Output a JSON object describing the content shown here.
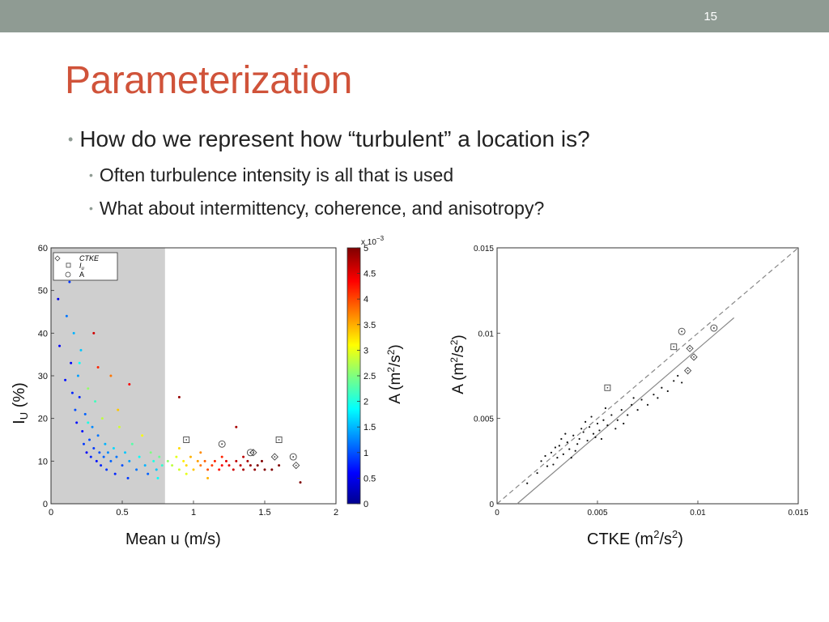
{
  "slide": {
    "number": "15",
    "title": "Parameterization",
    "bullets": [
      {
        "text": "How do we represent how “turbulent” a location is?"
      },
      {
        "text": "Often turbulence intensity is all that is used"
      },
      {
        "text": "What about intermittency, coherence, and anisotropy?"
      }
    ]
  },
  "chart_data": [
    {
      "type": "scatter",
      "xlabel": "Mean u (m/s)",
      "ylabel": "I",
      "ylabel_sub": "U",
      "ylabel_suffix": " (%)",
      "xlim": [
        0,
        2
      ],
      "ylim": [
        0,
        60
      ],
      "xticks": [
        "0",
        "0.5",
        "1",
        "1.5",
        "2"
      ],
      "yticks": [
        "0",
        "10",
        "20",
        "30",
        "40",
        "50",
        "60"
      ],
      "shaded_x_range": [
        0,
        0.8
      ],
      "legend": [
        "CTKE",
        "I",
        "A"
      ],
      "legend_sub": "u",
      "colorbar": {
        "label": "A (m",
        "label_sup1": "2",
        "label_mid": "/s",
        "label_sup2": "2",
        "label_end": ")",
        "exponent_base": "x 10",
        "exponent_sup": "−3",
        "range": [
          0,
          5
        ],
        "ticks": [
          "0",
          "0.5",
          "1",
          "1.5",
          "2",
          "2.5",
          "3",
          "3.5",
          "4",
          "4.5",
          "5"
        ]
      },
      "points": [
        {
          "x": 0.05,
          "y": 48,
          "c": 0.5
        },
        {
          "x": 0.06,
          "y": 37,
          "c": 0.6
        },
        {
          "x": 0.08,
          "y": 56,
          "c": 0.8
        },
        {
          "x": 0.1,
          "y": 29,
          "c": 0.7
        },
        {
          "x": 0.11,
          "y": 44,
          "c": 1.2
        },
        {
          "x": 0.13,
          "y": 52,
          "c": 0.9
        },
        {
          "x": 0.14,
          "y": 33,
          "c": 0.6
        },
        {
          "x": 0.15,
          "y": 26,
          "c": 0.8
        },
        {
          "x": 0.16,
          "y": 40,
          "c": 1.5
        },
        {
          "x": 0.17,
          "y": 22,
          "c": 1.0
        },
        {
          "x": 0.18,
          "y": 19,
          "c": 0.7
        },
        {
          "x": 0.19,
          "y": 30,
          "c": 1.4
        },
        {
          "x": 0.2,
          "y": 25,
          "c": 0.8
        },
        {
          "x": 0.21,
          "y": 36,
          "c": 1.6
        },
        {
          "x": 0.22,
          "y": 17,
          "c": 0.7
        },
        {
          "x": 0.23,
          "y": 14,
          "c": 0.9
        },
        {
          "x": 0.24,
          "y": 21,
          "c": 1.1
        },
        {
          "x": 0.25,
          "y": 12,
          "c": 0.6
        },
        {
          "x": 0.26,
          "y": 27,
          "c": 2.6
        },
        {
          "x": 0.27,
          "y": 15,
          "c": 1.0
        },
        {
          "x": 0.28,
          "y": 11,
          "c": 0.8
        },
        {
          "x": 0.29,
          "y": 18,
          "c": 1.3
        },
        {
          "x": 0.3,
          "y": 13,
          "c": 0.9
        },
        {
          "x": 0.31,
          "y": 24,
          "c": 2.2
        },
        {
          "x": 0.32,
          "y": 10,
          "c": 0.7
        },
        {
          "x": 0.33,
          "y": 16,
          "c": 1.2
        },
        {
          "x": 0.34,
          "y": 12,
          "c": 1.0
        },
        {
          "x": 0.35,
          "y": 9,
          "c": 0.8
        },
        {
          "x": 0.36,
          "y": 20,
          "c": 2.8
        },
        {
          "x": 0.37,
          "y": 11,
          "c": 1.1
        },
        {
          "x": 0.38,
          "y": 14,
          "c": 1.5
        },
        {
          "x": 0.39,
          "y": 8,
          "c": 0.9
        },
        {
          "x": 0.4,
          "y": 12,
          "c": 1.3
        },
        {
          "x": 0.42,
          "y": 10,
          "c": 1.1
        },
        {
          "x": 0.44,
          "y": 13,
          "c": 1.7
        },
        {
          "x": 0.45,
          "y": 7,
          "c": 0.8
        },
        {
          "x": 0.46,
          "y": 11,
          "c": 1.2
        },
        {
          "x": 0.48,
          "y": 18,
          "c": 2.9
        },
        {
          "x": 0.5,
          "y": 9,
          "c": 1.0
        },
        {
          "x": 0.52,
          "y": 12,
          "c": 1.6
        },
        {
          "x": 0.54,
          "y": 6,
          "c": 0.9
        },
        {
          "x": 0.55,
          "y": 10,
          "c": 1.4
        },
        {
          "x": 0.57,
          "y": 14,
          "c": 2.3
        },
        {
          "x": 0.6,
          "y": 8,
          "c": 1.2
        },
        {
          "x": 0.62,
          "y": 11,
          "c": 1.9
        },
        {
          "x": 0.64,
          "y": 16,
          "c": 3.1
        },
        {
          "x": 0.66,
          "y": 9,
          "c": 1.5
        },
        {
          "x": 0.68,
          "y": 7,
          "c": 1.1
        },
        {
          "x": 0.7,
          "y": 12,
          "c": 2.5
        },
        {
          "x": 0.72,
          "y": 10,
          "c": 2.0
        },
        {
          "x": 0.74,
          "y": 8,
          "c": 1.6
        },
        {
          "x": 0.76,
          "y": 11,
          "c": 2.4
        },
        {
          "x": 0.78,
          "y": 9,
          "c": 2.1
        },
        {
          "x": 0.42,
          "y": 30,
          "c": 3.8
        },
        {
          "x": 0.33,
          "y": 32,
          "c": 4.2
        },
        {
          "x": 0.3,
          "y": 40,
          "c": 4.6
        },
        {
          "x": 0.55,
          "y": 28,
          "c": 4.4
        },
        {
          "x": 0.26,
          "y": 19,
          "c": 2.0
        },
        {
          "x": 0.2,
          "y": 33,
          "c": 1.9
        },
        {
          "x": 0.47,
          "y": 22,
          "c": 3.4
        },
        {
          "x": 0.82,
          "y": 10,
          "c": 2.6
        },
        {
          "x": 0.85,
          "y": 9,
          "c": 2.8
        },
        {
          "x": 0.88,
          "y": 11,
          "c": 3.0
        },
        {
          "x": 0.9,
          "y": 8,
          "c": 2.9
        },
        {
          "x": 0.93,
          "y": 10,
          "c": 3.2
        },
        {
          "x": 0.95,
          "y": 9,
          "c": 3.3
        },
        {
          "x": 0.98,
          "y": 11,
          "c": 3.5
        },
        {
          "x": 1.0,
          "y": 8,
          "c": 3.4
        },
        {
          "x": 1.03,
          "y": 10,
          "c": 3.6
        },
        {
          "x": 1.05,
          "y": 9,
          "c": 3.8
        },
        {
          "x": 1.08,
          "y": 10,
          "c": 3.9
        },
        {
          "x": 1.1,
          "y": 8,
          "c": 4.0
        },
        {
          "x": 1.13,
          "y": 9,
          "c": 4.1
        },
        {
          "x": 1.15,
          "y": 10,
          "c": 4.2
        },
        {
          "x": 1.18,
          "y": 8,
          "c": 4.3
        },
        {
          "x": 1.2,
          "y": 9,
          "c": 4.4
        },
        {
          "x": 1.23,
          "y": 10,
          "c": 4.5
        },
        {
          "x": 1.25,
          "y": 9,
          "c": 4.5
        },
        {
          "x": 1.28,
          "y": 8,
          "c": 4.6
        },
        {
          "x": 1.3,
          "y": 10,
          "c": 4.7
        },
        {
          "x": 1.33,
          "y": 9,
          "c": 4.7
        },
        {
          "x": 1.35,
          "y": 8,
          "c": 4.8
        },
        {
          "x": 1.38,
          "y": 10,
          "c": 4.8
        },
        {
          "x": 1.4,
          "y": 9,
          "c": 4.9
        },
        {
          "x": 1.43,
          "y": 8,
          "c": 4.9
        },
        {
          "x": 1.45,
          "y": 9,
          "c": 5.0
        },
        {
          "x": 1.48,
          "y": 10,
          "c": 5.0
        },
        {
          "x": 1.5,
          "y": 8,
          "c": 5.0
        },
        {
          "x": 0.9,
          "y": 13,
          "c": 3.3
        },
        {
          "x": 1.05,
          "y": 12,
          "c": 3.7
        },
        {
          "x": 1.2,
          "y": 11,
          "c": 4.2
        },
        {
          "x": 0.95,
          "y": 7,
          "c": 3.0
        },
        {
          "x": 1.1,
          "y": 6,
          "c": 3.5
        },
        {
          "x": 1.35,
          "y": 11,
          "c": 4.7
        },
        {
          "x": 1.3,
          "y": 18,
          "c": 4.8
        },
        {
          "x": 0.9,
          "y": 25,
          "c": 4.9
        },
        {
          "x": 1.55,
          "y": 8,
          "c": 5.0
        },
        {
          "x": 1.6,
          "y": 9,
          "c": 5.0
        },
        {
          "x": 1.75,
          "y": 5,
          "c": 5.0
        },
        {
          "x": 0.75,
          "y": 6,
          "c": 1.9
        }
      ],
      "markers": [
        {
          "x": 0.95,
          "y": 15,
          "shape": "square"
        },
        {
          "x": 1.2,
          "y": 14,
          "shape": "circle"
        },
        {
          "x": 1.4,
          "y": 12,
          "shape": "circle"
        },
        {
          "x": 1.42,
          "y": 12,
          "shape": "diamond"
        },
        {
          "x": 1.6,
          "y": 15,
          "shape": "square"
        },
        {
          "x": 1.7,
          "y": 11,
          "shape": "circle"
        },
        {
          "x": 1.72,
          "y": 9,
          "shape": "diamond"
        },
        {
          "x": 1.57,
          "y": 11,
          "shape": "diamond"
        }
      ]
    },
    {
      "type": "scatter",
      "xlabel": "CTKE (m",
      "xlabel_sup1": "2",
      "xlabel_mid": "/s",
      "xlabel_sup2": "2",
      "xlabel_end": ")",
      "ylabel": "A (m",
      "ylabel_sup1": "2",
      "ylabel_mid": "/s",
      "ylabel_sup2": "2",
      "ylabel_end": ")",
      "xlim": [
        0,
        0.015
      ],
      "ylim": [
        0,
        0.015
      ],
      "xticks": [
        "0",
        "0.005",
        "0.01",
        "0.015"
      ],
      "yticks": [
        "0",
        "0.005",
        "0.01",
        "0.015"
      ],
      "reference_line": {
        "style": "dashed",
        "from": [
          0,
          0
        ],
        "to": [
          0.015,
          0.015
        ]
      },
      "fit_line": {
        "style": "solid",
        "from": [
          0.001,
          0.0
        ],
        "to": [
          0.0118,
          0.0109
        ]
      },
      "points": [
        {
          "x": 0.0015,
          "y": 0.0012
        },
        {
          "x": 0.002,
          "y": 0.0018
        },
        {
          "x": 0.0022,
          "y": 0.0025
        },
        {
          "x": 0.0025,
          "y": 0.0022
        },
        {
          "x": 0.0027,
          "y": 0.003
        },
        {
          "x": 0.003,
          "y": 0.0027
        },
        {
          "x": 0.0031,
          "y": 0.0034
        },
        {
          "x": 0.0033,
          "y": 0.0029
        },
        {
          "x": 0.0035,
          "y": 0.0036
        },
        {
          "x": 0.0036,
          "y": 0.0032
        },
        {
          "x": 0.0038,
          "y": 0.004
        },
        {
          "x": 0.004,
          "y": 0.0035
        },
        {
          "x": 0.0041,
          "y": 0.0038
        },
        {
          "x": 0.0043,
          "y": 0.0042
        },
        {
          "x": 0.0045,
          "y": 0.0037
        },
        {
          "x": 0.0046,
          "y": 0.0045
        },
        {
          "x": 0.0048,
          "y": 0.0041
        },
        {
          "x": 0.005,
          "y": 0.0047
        },
        {
          "x": 0.0051,
          "y": 0.0043
        },
        {
          "x": 0.0053,
          "y": 0.0049
        },
        {
          "x": 0.0055,
          "y": 0.0046
        },
        {
          "x": 0.0057,
          "y": 0.0052
        },
        {
          "x": 0.006,
          "y": 0.0049
        },
        {
          "x": 0.0062,
          "y": 0.0055
        },
        {
          "x": 0.0065,
          "y": 0.0052
        },
        {
          "x": 0.0067,
          "y": 0.0058
        },
        {
          "x": 0.007,
          "y": 0.0055
        },
        {
          "x": 0.0072,
          "y": 0.0061
        },
        {
          "x": 0.0075,
          "y": 0.0058
        },
        {
          "x": 0.0078,
          "y": 0.0064
        },
        {
          "x": 0.008,
          "y": 0.0062
        },
        {
          "x": 0.0082,
          "y": 0.0068
        },
        {
          "x": 0.0085,
          "y": 0.0066
        },
        {
          "x": 0.0088,
          "y": 0.0072
        },
        {
          "x": 0.009,
          "y": 0.0075
        },
        {
          "x": 0.0092,
          "y": 0.0071
        },
        {
          "x": 0.0034,
          "y": 0.0041
        },
        {
          "x": 0.0039,
          "y": 0.0031
        },
        {
          "x": 0.0044,
          "y": 0.0048
        },
        {
          "x": 0.0049,
          "y": 0.0039
        },
        {
          "x": 0.0054,
          "y": 0.0056
        },
        {
          "x": 0.0059,
          "y": 0.0044
        },
        {
          "x": 0.0028,
          "y": 0.0023
        },
        {
          "x": 0.0032,
          "y": 0.0038
        },
        {
          "x": 0.0037,
          "y": 0.0027
        },
        {
          "x": 0.0042,
          "y": 0.0044
        },
        {
          "x": 0.0047,
          "y": 0.0051
        },
        {
          "x": 0.0052,
          "y": 0.0038
        },
        {
          "x": 0.0024,
          "y": 0.0028
        },
        {
          "x": 0.0029,
          "y": 0.0033
        },
        {
          "x": 0.0063,
          "y": 0.0047
        },
        {
          "x": 0.0068,
          "y": 0.0062
        }
      ],
      "markers": [
        {
          "x": 0.0055,
          "y": 0.0068,
          "shape": "square"
        },
        {
          "x": 0.0088,
          "y": 0.0092,
          "shape": "square"
        },
        {
          "x": 0.0092,
          "y": 0.0101,
          "shape": "circle"
        },
        {
          "x": 0.0108,
          "y": 0.0103,
          "shape": "circle"
        },
        {
          "x": 0.0096,
          "y": 0.0091,
          "shape": "diamond"
        },
        {
          "x": 0.0098,
          "y": 0.0086,
          "shape": "diamond"
        },
        {
          "x": 0.0095,
          "y": 0.0078,
          "shape": "diamond"
        }
      ]
    }
  ]
}
